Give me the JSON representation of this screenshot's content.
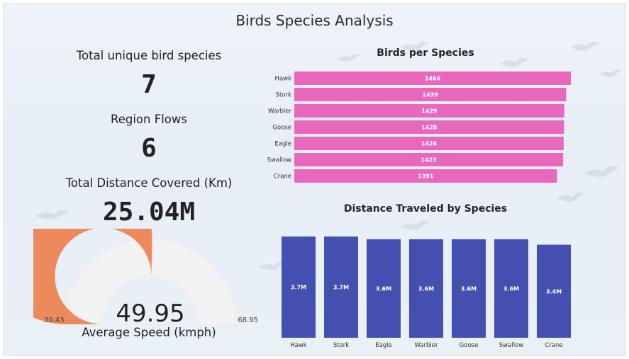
{
  "title": "Birds Species Analysis",
  "kpis": {
    "unique_species": {
      "label": "Total unique bird species",
      "value": "7"
    },
    "region_flows": {
      "label": "Region Flows",
      "value": "6"
    },
    "total_distance": {
      "label": "Total Distance Covered (Km)",
      "value": "25.04M"
    }
  },
  "gauge": {
    "label": "Average Speed (kmph)",
    "value": 49.95,
    "value_text": "49.95",
    "min": 30.43,
    "max": 68.95,
    "min_text": "30.43",
    "max_text": "68.95",
    "fill_color": "#ed8a5b",
    "track_color": "#f2f2f2"
  },
  "colors": {
    "bar_h": "#e868be",
    "bar_v": "#4350b0"
  },
  "chart_data": [
    {
      "type": "bar",
      "orientation": "horizontal",
      "title": "Birds per Species",
      "categories": [
        "Hawk",
        "Stork",
        "Warbler",
        "Goose",
        "Eagle",
        "Swallow",
        "Crane"
      ],
      "values": [
        1464,
        1439,
        1429,
        1428,
        1426,
        1423,
        1391
      ],
      "labels": [
        "1464",
        "1439",
        "1429",
        "1428",
        "1426",
        "1423",
        "1391"
      ],
      "xlim": [
        0,
        1464
      ]
    },
    {
      "type": "bar",
      "orientation": "vertical",
      "title": "Distance Traveled by Species",
      "categories": [
        "Hawk",
        "Stork",
        "Eagle",
        "Warbler",
        "Goose",
        "Swallow",
        "Crane"
      ],
      "values": [
        3.7,
        3.7,
        3.6,
        3.6,
        3.6,
        3.6,
        3.4
      ],
      "labels": [
        "3.7M",
        "3.7M",
        "3.6M",
        "3.6M",
        "3.6M",
        "3.6M",
        "3.4M"
      ],
      "ylim": [
        0,
        3.7
      ]
    }
  ]
}
